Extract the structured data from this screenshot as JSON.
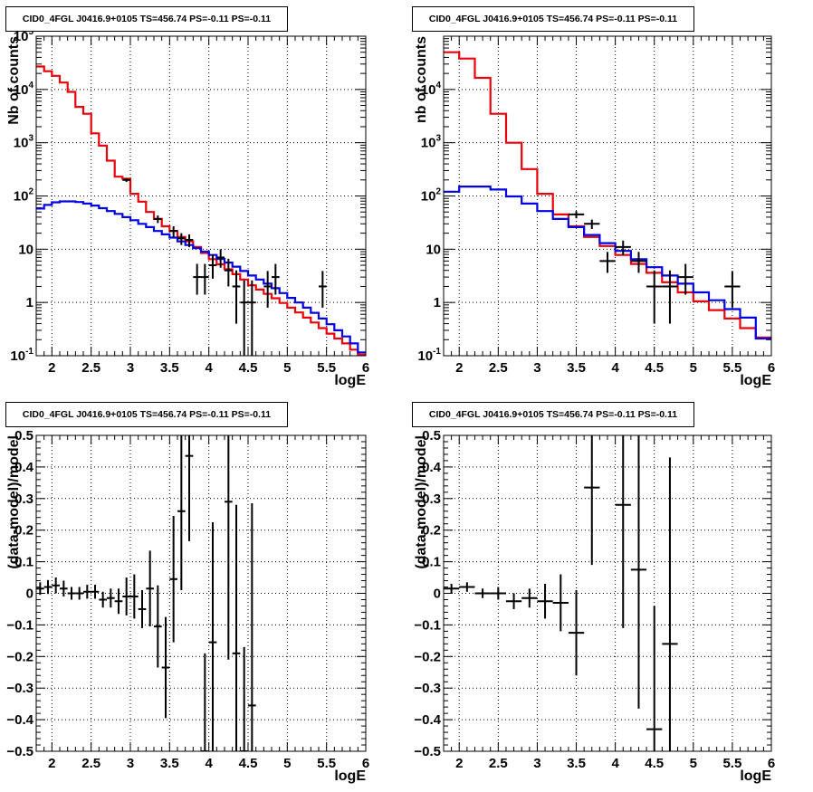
{
  "canvas": {
    "title": "CID0_4FGL J0416.9+0105 TS=456.74 PS=-0.11 PS=-0.11"
  },
  "colors": {
    "model_total": "#e8000b",
    "model_bkg": "#0000e0",
    "data": "#000000"
  },
  "chart_data": [
    {
      "type": "line",
      "title": "CID0_4FGL J0416.9+0105 TS=456.74 PS=-0.11 PS=-0.11",
      "xlabel": "logE",
      "ylabel": "Nb of counts",
      "yscale": "log",
      "xlim": [
        1.8,
        6.0
      ],
      "ylim": [
        0.1,
        100000
      ],
      "grid": true,
      "x_ticks": [
        "2",
        "2.5",
        "3",
        "3.5",
        "4",
        "4.5",
        "5",
        "5.5",
        "6"
      ],
      "y_ticks": [
        "10^-1",
        "1",
        "10",
        "10^2",
        "10^3",
        "10^4",
        "10^5"
      ],
      "bin_width": 0.1,
      "series": [
        {
          "kind": "step",
          "color": "red",
          "edges": [
            1.8,
            1.9,
            2.0,
            2.1,
            2.2,
            2.3,
            2.4,
            2.5,
            2.6,
            2.7,
            2.8,
            2.9,
            3.0,
            3.1,
            3.2,
            3.3,
            3.4,
            3.5,
            3.6,
            3.7,
            3.8,
            3.9,
            4.0,
            4.1,
            4.2,
            4.3,
            4.4,
            4.5,
            4.6,
            4.7,
            4.8,
            4.9,
            5.0,
            5.1,
            5.2,
            5.3,
            5.4,
            5.5,
            5.6,
            5.7,
            5.8,
            5.9,
            6.0
          ],
          "values": [
            27000,
            22000,
            18000,
            13500,
            9000,
            4700,
            3500,
            1500,
            880,
            460,
            230,
            210,
            110,
            78,
            50,
            37,
            27,
            22,
            17,
            14,
            11,
            8.5,
            6.5,
            5.2,
            4.2,
            3.4,
            2.7,
            2.1,
            1.75,
            1.45,
            1.2,
            0.98,
            0.8,
            0.65,
            0.52,
            0.42,
            0.33,
            0.26,
            0.21,
            0.17,
            0.13,
            0.105
          ]
        },
        {
          "kind": "step",
          "color": "blue",
          "edges": [
            1.8,
            1.9,
            2.0,
            2.1,
            2.2,
            2.3,
            2.4,
            2.5,
            2.6,
            2.7,
            2.8,
            2.9,
            3.0,
            3.1,
            3.2,
            3.3,
            3.4,
            3.5,
            3.6,
            3.7,
            3.8,
            3.9,
            4.0,
            4.1,
            4.2,
            4.3,
            4.4,
            4.5,
            4.6,
            4.7,
            4.8,
            4.9,
            5.0,
            5.1,
            5.2,
            5.3,
            5.4,
            5.5,
            5.6,
            5.7,
            5.8,
            5.9,
            6.0
          ],
          "values": [
            58,
            68,
            76,
            79,
            79,
            77,
            72,
            66,
            59,
            52,
            46,
            40,
            35,
            30,
            26,
            22,
            19,
            16.5,
            14,
            12,
            10.5,
            9,
            7.8,
            6.6,
            5.6,
            4.7,
            3.9,
            3.2,
            2.7,
            2.25,
            1.85,
            1.5,
            1.22,
            1.0,
            0.8,
            0.64,
            0.5,
            0.39,
            0.3,
            0.23,
            0.17,
            0.115
          ]
        },
        {
          "kind": "errorbar",
          "color": "black",
          "points": [
            {
              "x": 2.95,
              "y": 200,
              "yerr_low": 16,
              "yerr_high": 16
            },
            {
              "x": 3.35,
              "y": 37,
              "yerr_low": 6,
              "yerr_high": 6
            },
            {
              "x": 3.55,
              "y": 22,
              "yerr_low": 5,
              "yerr_high": 5
            },
            {
              "x": 3.65,
              "y": 16,
              "yerr_low": 4,
              "yerr_high": 4
            },
            {
              "x": 3.75,
              "y": 15,
              "yerr_low": 4,
              "yerr_high": 4
            },
            {
              "x": 3.85,
              "y": 3,
              "yerr_low": 1.6,
              "yerr_high": 2.3
            },
            {
              "x": 3.95,
              "y": 3,
              "yerr_low": 1.6,
              "yerr_high": 2.3
            },
            {
              "x": 4.05,
              "y": 5,
              "yerr_low": 2.2,
              "yerr_high": 2.8
            },
            {
              "x": 4.15,
              "y": 7,
              "yerr_low": 2.5,
              "yerr_high": 3
            },
            {
              "x": 4.25,
              "y": 4,
              "yerr_low": 2,
              "yerr_high": 2.6
            },
            {
              "x": 4.35,
              "y": 2,
              "yerr_low": 1.6,
              "yerr_high": 2
            },
            {
              "x": 4.45,
              "y": 1,
              "yerr_low": 0.95,
              "yerr_high": 1.6
            },
            {
              "x": 4.55,
              "y": 1,
              "yerr_low": 0.95,
              "yerr_high": 1.6
            },
            {
              "x": 4.75,
              "y": 2,
              "yerr_low": 1.2,
              "yerr_high": 1.9
            },
            {
              "x": 4.85,
              "y": 3,
              "yerr_low": 1.6,
              "yerr_high": 2.3
            },
            {
              "x": 5.45,
              "y": 2,
              "yerr_low": 1.2,
              "yerr_high": 1.9
            }
          ]
        }
      ]
    },
    {
      "type": "line",
      "title": "CID0_4FGL J0416.9+0105 TS=456.74 PS=-0.11 PS=-0.11",
      "xlabel": "logE",
      "ylabel": "nb of counts",
      "yscale": "log",
      "xlim": [
        1.8,
        6.0
      ],
      "ylim": [
        0.1,
        100000
      ],
      "grid": true,
      "x_ticks": [
        "2",
        "2.5",
        "3",
        "3.5",
        "4",
        "4.5",
        "5",
        "5.5",
        "6"
      ],
      "y_ticks": [
        "10^-1",
        "1",
        "10",
        "10^2",
        "10^3",
        "10^4"
      ],
      "bin_width": 0.2,
      "series": [
        {
          "kind": "step",
          "color": "red",
          "edges": [
            1.8,
            2.0,
            2.2,
            2.4,
            2.6,
            2.8,
            3.0,
            3.2,
            3.4,
            3.6,
            3.8,
            4.0,
            4.2,
            4.4,
            4.6,
            4.8,
            5.0,
            5.2,
            5.4,
            5.6,
            5.8,
            6.0
          ],
          "values": [
            50000,
            38000,
            16500,
            3500,
            1000,
            320,
            110,
            45,
            27,
            17,
            11.5,
            7.8,
            5.3,
            3.6,
            2.4,
            1.55,
            1.05,
            0.72,
            0.5,
            0.33,
            0.22
          ]
        },
        {
          "kind": "step",
          "color": "blue",
          "edges": [
            1.8,
            2.0,
            2.2,
            2.4,
            2.6,
            2.8,
            3.0,
            3.2,
            3.4,
            3.6,
            3.8,
            4.0,
            4.2,
            4.4,
            4.6,
            4.8,
            5.0,
            5.2,
            5.4,
            5.6,
            5.8,
            6.0
          ],
          "values": [
            120,
            150,
            150,
            132,
            98,
            72,
            52,
            37,
            26,
            18.5,
            13,
            9.3,
            6.5,
            4.6,
            3.2,
            2.25,
            1.55,
            1.1,
            0.75,
            0.52,
            0.21
          ]
        },
        {
          "kind": "errorbar",
          "color": "black",
          "points": [
            {
              "x": 3.5,
              "y": 45,
              "yerr_low": 7,
              "yerr_high": 7
            },
            {
              "x": 3.7,
              "y": 30,
              "yerr_low": 6,
              "yerr_high": 6
            },
            {
              "x": 3.9,
              "y": 6,
              "yerr_low": 2.4,
              "yerr_high": 2.9
            },
            {
              "x": 4.1,
              "y": 11,
              "yerr_low": 3.3,
              "yerr_high": 3.5
            },
            {
              "x": 4.3,
              "y": 6,
              "yerr_low": 2.4,
              "yerr_high": 2.9
            },
            {
              "x": 4.5,
              "y": 2,
              "yerr_low": 1.6,
              "yerr_high": 2
            },
            {
              "x": 4.7,
              "y": 2,
              "yerr_low": 1.6,
              "yerr_high": 2
            },
            {
              "x": 4.9,
              "y": 3,
              "yerr_low": 1.6,
              "yerr_high": 2.3
            },
            {
              "x": 5.5,
              "y": 2,
              "yerr_low": 1.2,
              "yerr_high": 1.9
            }
          ]
        }
      ]
    },
    {
      "type": "scatter",
      "title": "CID0_4FGL J0416.9+0105 TS=456.74 PS=-0.11 PS=-0.11",
      "xlabel": "logE",
      "ylabel": "(data-model)/model",
      "yscale": "linear",
      "xlim": [
        1.8,
        6.0
      ],
      "ylim": [
        -0.5,
        0.5
      ],
      "grid": true,
      "x_ticks": [
        "2",
        "2.5",
        "3",
        "3.5",
        "4",
        "4.5",
        "5",
        "5.5",
        "6"
      ],
      "y_ticks": [
        "-0.5",
        "-0.4",
        "-0.3",
        "-0.2",
        "-0.1",
        "0",
        "0.1",
        "0.2",
        "0.3",
        "0.4",
        "0.5"
      ],
      "bin_width": 0.1,
      "series": [
        {
          "kind": "errorbar",
          "color": "black",
          "points": [
            {
              "x": 1.85,
              "y": 0.015,
              "err": 0.02
            },
            {
              "x": 1.95,
              "y": 0.02,
              "err": 0.022
            },
            {
              "x": 2.05,
              "y": 0.025,
              "err": 0.025
            },
            {
              "x": 2.15,
              "y": 0.015,
              "err": 0.025
            },
            {
              "x": 2.25,
              "y": 0.0,
              "err": 0.02
            },
            {
              "x": 2.35,
              "y": 0.0,
              "err": 0.02
            },
            {
              "x": 2.45,
              "y": 0.005,
              "err": 0.022
            },
            {
              "x": 2.55,
              "y": 0.005,
              "err": 0.022
            },
            {
              "x": 2.65,
              "y": -0.02,
              "err": 0.025
            },
            {
              "x": 2.75,
              "y": -0.015,
              "err": 0.03
            },
            {
              "x": 2.85,
              "y": -0.025,
              "err": 0.04
            },
            {
              "x": 2.95,
              "y": -0.01,
              "err": 0.06
            },
            {
              "x": 3.05,
              "y": -0.01,
              "err": 0.07
            },
            {
              "x": 3.15,
              "y": -0.05,
              "err": 0.06
            },
            {
              "x": 3.25,
              "y": 0.015,
              "err": 0.12
            },
            {
              "x": 3.35,
              "y": -0.105,
              "err": 0.13
            },
            {
              "x": 3.45,
              "y": -0.235,
              "err": 0.16
            },
            {
              "x": 3.55,
              "y": 0.045,
              "err": 0.2
            },
            {
              "x": 3.65,
              "y": 0.26,
              "err": 0.25
            },
            {
              "x": 3.75,
              "y": 0.435,
              "err": 0.27
            },
            {
              "x": 3.95,
              "y": -0.5,
              "err": 0.31
            },
            {
              "x": 4.05,
              "y": -0.155,
              "err": 0.38
            },
            {
              "x": 4.25,
              "y": 0.29,
              "err": 0.5
            },
            {
              "x": 4.35,
              "y": -0.19,
              "err": 0.47
            },
            {
              "x": 4.45,
              "y": -0.5,
              "err": 0.33
            },
            {
              "x": 4.55,
              "y": -0.355,
              "err": 0.64
            }
          ]
        }
      ]
    },
    {
      "type": "scatter",
      "title": "CID0_4FGL J0416.9+0105 TS=456.74 PS=-0.11 PS=-0.11",
      "xlabel": "logE",
      "ylabel": "(data-model)/model",
      "yscale": "linear",
      "xlim": [
        1.8,
        6.0
      ],
      "ylim": [
        -0.5,
        0.5
      ],
      "grid": true,
      "x_ticks": [
        "2",
        "2.5",
        "3",
        "3.5",
        "4",
        "4.5",
        "5",
        "5.5",
        "6"
      ],
      "y_ticks": [
        "-0.5",
        "-0.4",
        "-0.3",
        "-0.2",
        "-0.1",
        "0",
        "0.1",
        "0.2",
        "0.3",
        "0.4",
        "0.5"
      ],
      "bin_width": 0.2,
      "series": [
        {
          "kind": "errorbar",
          "color": "black",
          "points": [
            {
              "x": 1.9,
              "y": 0.015,
              "err": 0.015
            },
            {
              "x": 2.1,
              "y": 0.02,
              "err": 0.015
            },
            {
              "x": 2.3,
              "y": 0.0,
              "err": 0.015
            },
            {
              "x": 2.5,
              "y": 0.0,
              "err": 0.02
            },
            {
              "x": 2.7,
              "y": -0.025,
              "err": 0.025
            },
            {
              "x": 2.9,
              "y": -0.015,
              "err": 0.03
            },
            {
              "x": 3.1,
              "y": -0.025,
              "err": 0.055
            },
            {
              "x": 3.3,
              "y": -0.03,
              "err": 0.09
            },
            {
              "x": 3.5,
              "y": -0.125,
              "err": 0.135
            },
            {
              "x": 3.7,
              "y": 0.335,
              "err": 0.245
            },
            {
              "x": 4.1,
              "y": 0.28,
              "err": 0.39
            },
            {
              "x": 4.3,
              "y": 0.075,
              "err": 0.44
            },
            {
              "x": 4.5,
              "y": -0.43,
              "err": 0.39
            },
            {
              "x": 4.7,
              "y": -0.16,
              "err": 0.59
            }
          ]
        }
      ]
    }
  ]
}
